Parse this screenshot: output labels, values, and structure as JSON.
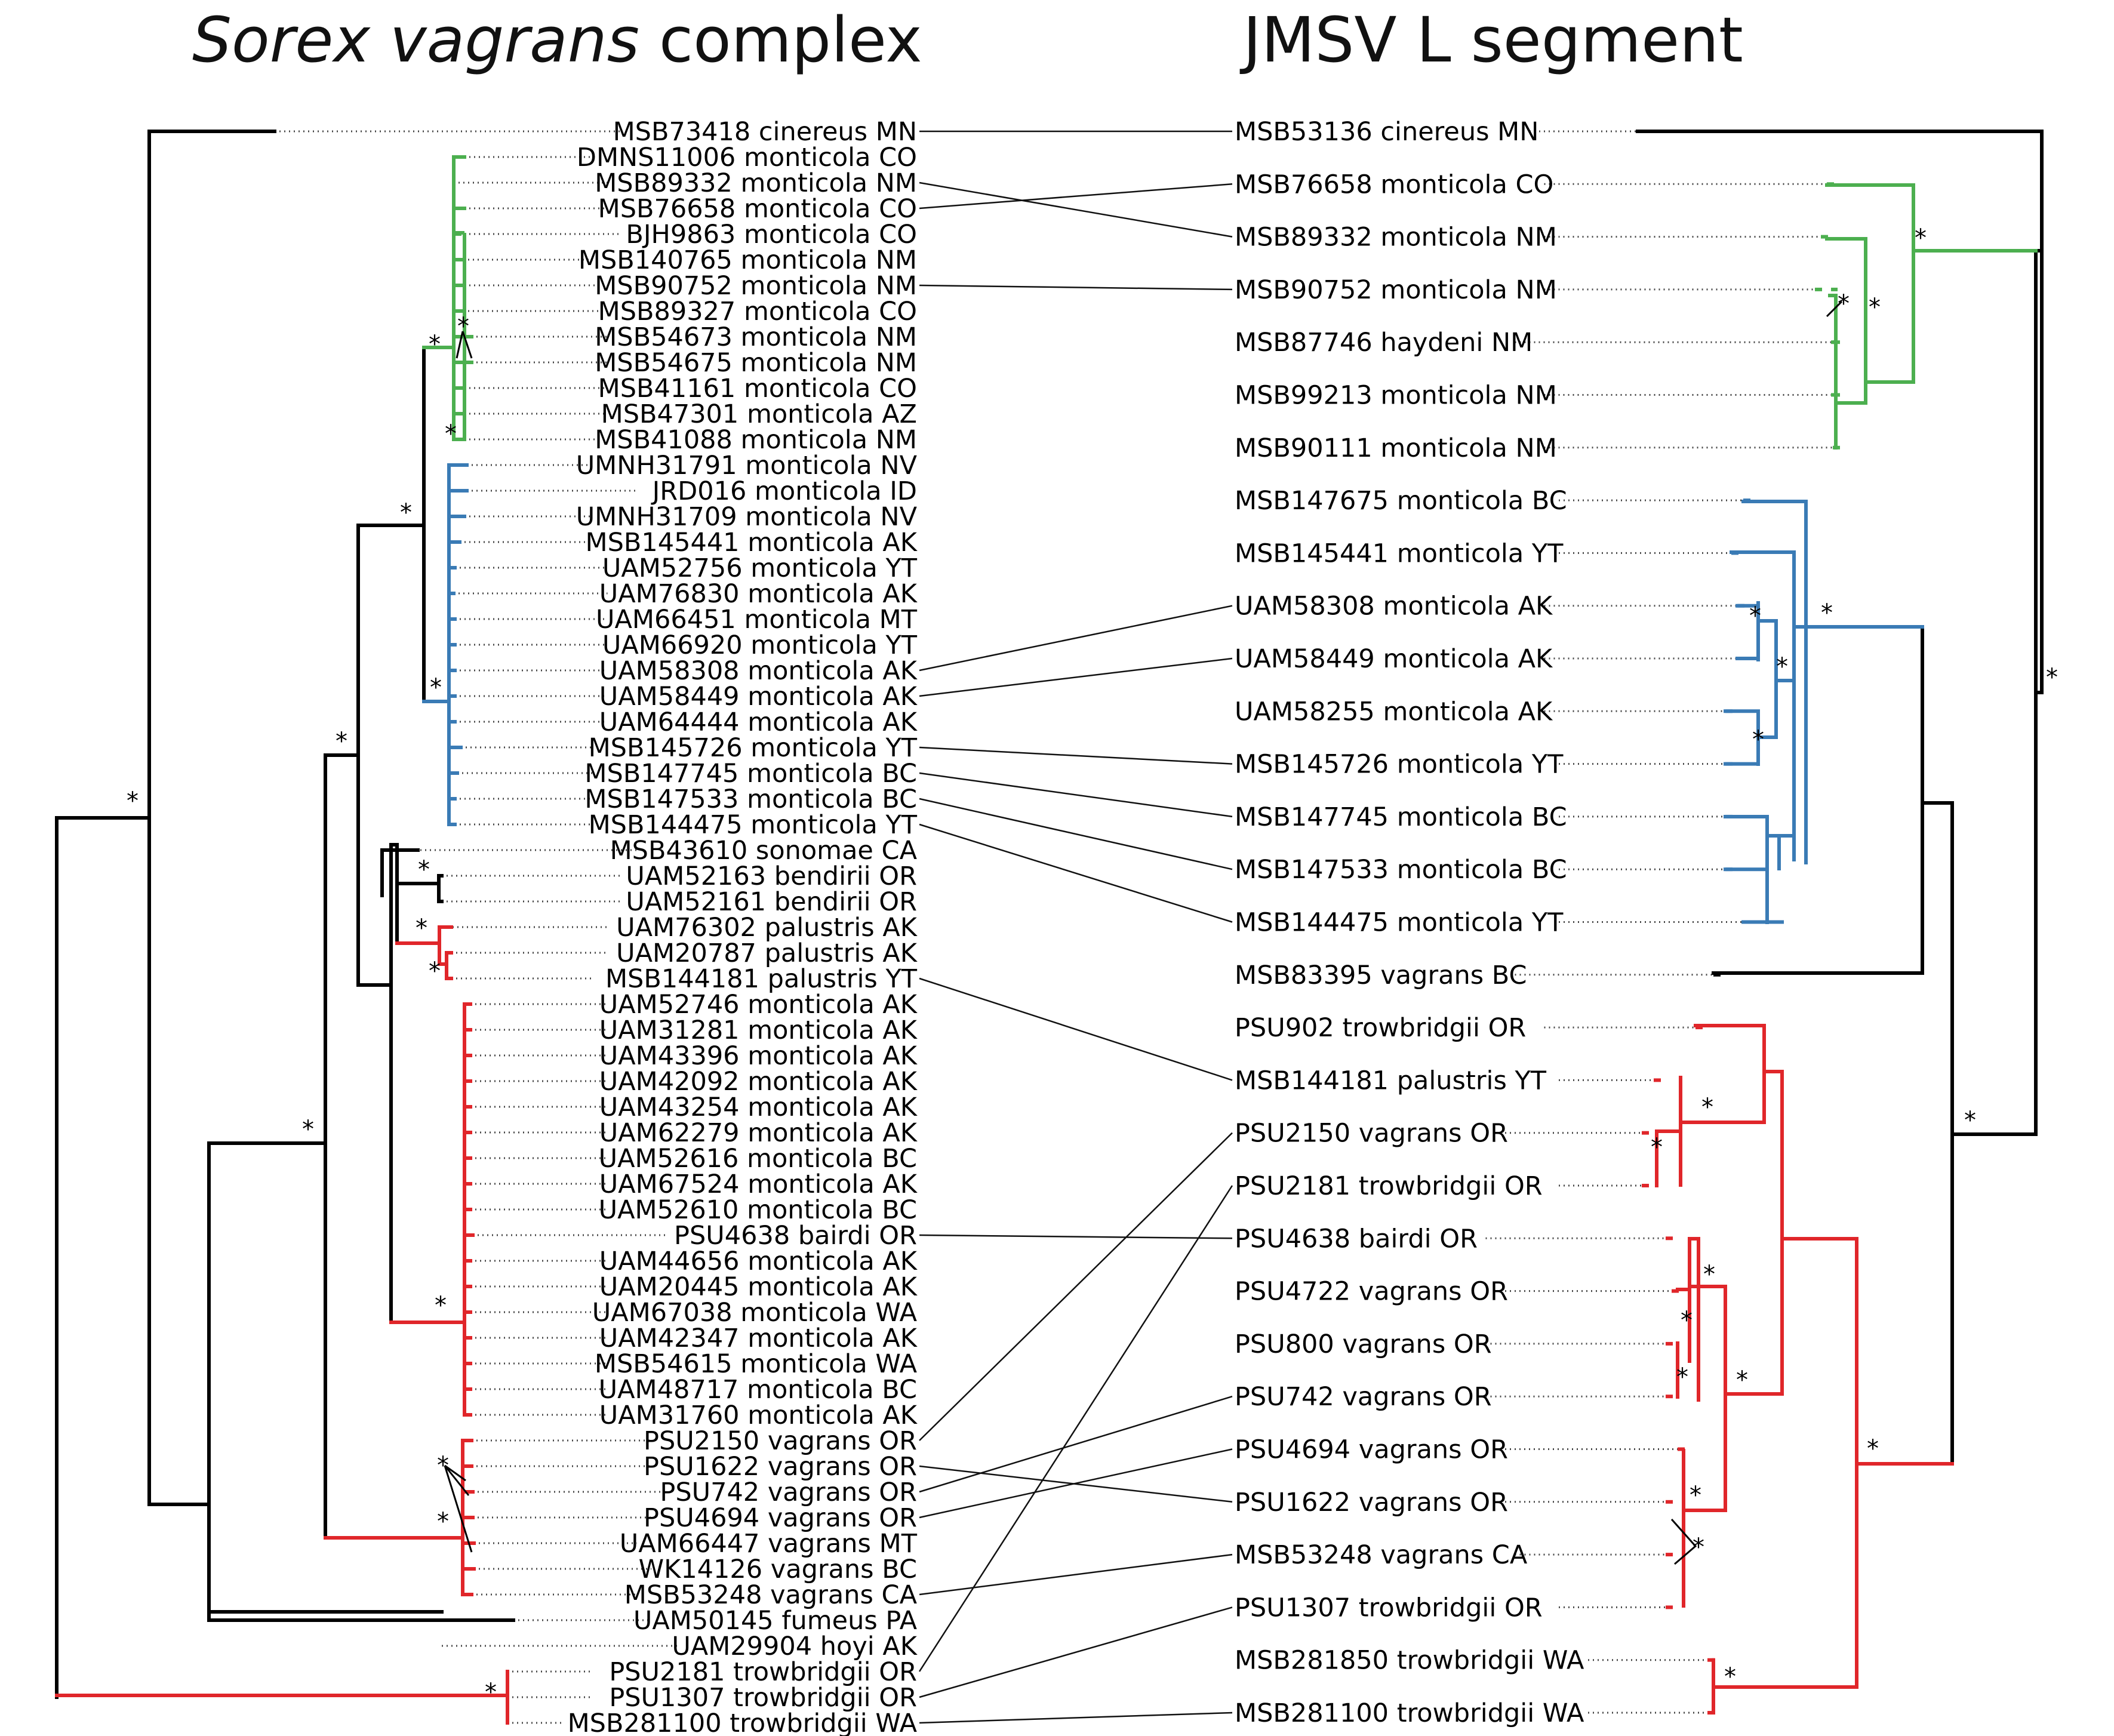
{
  "titles": {
    "left_italic": "Sorex vagrans",
    "left_rest": " complex",
    "right": "JMSV L segment"
  },
  "colors": {
    "black": "#000000",
    "green": "#4caf4f",
    "blue": "#3a7bb5",
    "red": "#e0262a",
    "dotted": "#444444"
  },
  "left_taxa": [
    {
      "label": "MSB73418 cinereus MN",
      "color": "black"
    },
    {
      "label": "DMNS11006 monticola CO",
      "color": "green"
    },
    {
      "label": "MSB89332 monticola NM",
      "color": "green"
    },
    {
      "label": "MSB76658 monticola CO",
      "color": "green"
    },
    {
      "label": "BJH9863 monticola CO",
      "color": "green"
    },
    {
      "label": "MSB140765 monticola NM",
      "color": "green"
    },
    {
      "label": "MSB90752 monticola NM",
      "color": "green"
    },
    {
      "label": "MSB89327 monticola CO",
      "color": "green"
    },
    {
      "label": "MSB54673 monticola NM",
      "color": "green"
    },
    {
      "label": "MSB54675 monticola NM",
      "color": "green"
    },
    {
      "label": "MSB41161 monticola CO",
      "color": "green"
    },
    {
      "label": "MSB47301 monticola AZ",
      "color": "green"
    },
    {
      "label": "MSB41088 monticola NM",
      "color": "green"
    },
    {
      "label": "UMNH31791 monticola NV",
      "color": "blue"
    },
    {
      "label": "JRD016 monticola ID",
      "color": "blue"
    },
    {
      "label": "UMNH31709 monticola NV",
      "color": "blue"
    },
    {
      "label": "MSB145441 monticola AK",
      "color": "blue"
    },
    {
      "label": "UAM52756 monticola YT",
      "color": "blue"
    },
    {
      "label": "UAM76830 monticola AK",
      "color": "blue"
    },
    {
      "label": "UAM66451 monticola MT",
      "color": "blue"
    },
    {
      "label": "UAM66920 monticola YT",
      "color": "blue"
    },
    {
      "label": "UAM58308 monticola AK",
      "color": "blue"
    },
    {
      "label": "UAM58449 monticola AK",
      "color": "blue"
    },
    {
      "label": "UAM64444 monticola AK",
      "color": "blue"
    },
    {
      "label": "MSB145726 monticola YT",
      "color": "blue"
    },
    {
      "label": "MSB147745 monticola BC",
      "color": "blue"
    },
    {
      "label": "MSB147533 monticola BC",
      "color": "blue"
    },
    {
      "label": "MSB144475 monticola YT",
      "color": "blue"
    },
    {
      "label": "MSB43610 sonomae CA",
      "color": "black"
    },
    {
      "label": "UAM52163 bendirii OR",
      "color": "black"
    },
    {
      "label": "UAM52161 bendirii OR",
      "color": "black"
    },
    {
      "label": "UAM76302 palustris AK",
      "color": "red"
    },
    {
      "label": "UAM20787 palustris AK",
      "color": "red"
    },
    {
      "label": "MSB144181 palustris YT",
      "color": "red"
    },
    {
      "label": "UAM52746 monticola AK",
      "color": "red"
    },
    {
      "label": "UAM31281 monticola AK",
      "color": "red"
    },
    {
      "label": "UAM43396 monticola AK",
      "color": "red"
    },
    {
      "label": "UAM42092 monticola AK",
      "color": "red"
    },
    {
      "label": "UAM43254 monticola AK",
      "color": "red"
    },
    {
      "label": "UAM62279 monticola AK",
      "color": "red"
    },
    {
      "label": "UAM52616 monticola BC",
      "color": "red"
    },
    {
      "label": "UAM67524 monticola AK",
      "color": "red"
    },
    {
      "label": "UAM52610 monticola BC",
      "color": "red"
    },
    {
      "label": "PSU4638 bairdi OR",
      "color": "red"
    },
    {
      "label": "UAM44656 monticola AK",
      "color": "red"
    },
    {
      "label": "UAM20445 monticola AK",
      "color": "red"
    },
    {
      "label": "UAM67038 monticola WA",
      "color": "red"
    },
    {
      "label": "UAM42347 monticola AK",
      "color": "red"
    },
    {
      "label": "MSB54615 monticola WA",
      "color": "red"
    },
    {
      "label": "UAM48717 monticola BC",
      "color": "red"
    },
    {
      "label": "UAM31760 monticola AK",
      "color": "red"
    },
    {
      "label": "PSU2150 vagrans OR",
      "color": "red"
    },
    {
      "label": "PSU1622 vagrans OR",
      "color": "red"
    },
    {
      "label": "PSU742 vagrans OR",
      "color": "red"
    },
    {
      "label": "PSU4694 vagrans OR",
      "color": "red"
    },
    {
      "label": "UAM66447 vagrans MT",
      "color": "red"
    },
    {
      "label": "WK14126 vagrans BC",
      "color": "red"
    },
    {
      "label": "MSB53248 vagrans CA",
      "color": "red"
    },
    {
      "label": "UAM50145 fumeus PA",
      "color": "black"
    },
    {
      "label": "UAM29904 hoyi AK",
      "color": "black"
    },
    {
      "label": "PSU2181 trowbridgii OR",
      "color": "red"
    },
    {
      "label": "PSU1307 trowbridgii OR",
      "color": "red"
    },
    {
      "label": "MSB281100 trowbridgii WA",
      "color": "red"
    }
  ],
  "right_taxa": [
    {
      "label": "MSB53136 cinereus MN",
      "color": "black"
    },
    {
      "label": "MSB76658 monticola CO",
      "color": "green"
    },
    {
      "label": "MSB89332 monticola NM",
      "color": "green"
    },
    {
      "label": "MSB90752 monticola NM",
      "color": "green"
    },
    {
      "label": "MSB87746 haydeni NM",
      "color": "green"
    },
    {
      "label": "MSB99213 monticola NM",
      "color": "green"
    },
    {
      "label": "MSB90111 monticola NM",
      "color": "green"
    },
    {
      "label": "MSB147675 monticola BC",
      "color": "blue"
    },
    {
      "label": "MSB145441 monticola YT",
      "color": "blue"
    },
    {
      "label": "UAM58308 monticola AK",
      "color": "blue"
    },
    {
      "label": "UAM58449 monticola AK",
      "color": "blue"
    },
    {
      "label": "UAM58255 monticola AK",
      "color": "blue"
    },
    {
      "label": "MSB145726 monticola YT",
      "color": "blue"
    },
    {
      "label": "MSB147745 monticola BC",
      "color": "blue"
    },
    {
      "label": "MSB147533 monticola BC",
      "color": "blue"
    },
    {
      "label": "MSB144475 monticola YT",
      "color": "blue"
    },
    {
      "label": "MSB83395 vagrans BC",
      "color": "black"
    },
    {
      "label": "PSU902 trowbridgii OR",
      "color": "red"
    },
    {
      "label": "MSB144181 palustris YT",
      "color": "red"
    },
    {
      "label": "PSU2150 vagrans OR",
      "color": "red"
    },
    {
      "label": "PSU2181 trowbridgii OR",
      "color": "red"
    },
    {
      "label": "PSU4638 bairdi OR",
      "color": "red"
    },
    {
      "label": "PSU4722 vagrans OR",
      "color": "red"
    },
    {
      "label": "PSU800 vagrans OR",
      "color": "red"
    },
    {
      "label": "PSU742 vagrans OR",
      "color": "red"
    },
    {
      "label": "PSU4694 vagrans OR",
      "color": "red"
    },
    {
      "label": "PSU1622 vagrans OR",
      "color": "red"
    },
    {
      "label": "MSB53248 vagrans CA",
      "color": "red"
    },
    {
      "label": "PSU1307 trowbridgii OR",
      "color": "red"
    },
    {
      "label": "MSB281850 trowbridgii WA",
      "color": "red"
    },
    {
      "label": "MSB281100 trowbridgii WA",
      "color": "red"
    }
  ],
  "associations": [
    {
      "left": "MSB73418 cinereus MN",
      "right": "MSB53136 cinereus MN"
    },
    {
      "left": "MSB89332 monticola NM",
      "right": "MSB89332 monticola NM"
    },
    {
      "left": "MSB76658 monticola CO",
      "right": "MSB76658 monticola CO"
    },
    {
      "left": "MSB90752 monticola NM",
      "right": "MSB90752 monticola NM"
    },
    {
      "left": "UAM58308 monticola AK",
      "right": "UAM58308 monticola AK"
    },
    {
      "left": "UAM58449 monticola AK",
      "right": "UAM58449 monticola AK"
    },
    {
      "left": "MSB145726 monticola YT",
      "right": "MSB145726 monticola YT"
    },
    {
      "left": "MSB147745 monticola BC",
      "right": "MSB147745 monticola BC"
    },
    {
      "left": "MSB147533 monticola BC",
      "right": "MSB147533 monticola BC"
    },
    {
      "left": "MSB144475 monticola YT",
      "right": "MSB144475 monticola YT"
    },
    {
      "left": "MSB144181 palustris YT",
      "right": "MSB144181 palustris YT"
    },
    {
      "left": "PSU4638 bairdi OR",
      "right": "PSU4638 bairdi OR"
    },
    {
      "left": "PSU2150 vagrans OR",
      "right": "PSU2150 vagrans OR"
    },
    {
      "left": "PSU1622 vagrans OR",
      "right": "PSU1622 vagrans OR"
    },
    {
      "left": "PSU742 vagrans OR",
      "right": "PSU742 vagrans OR"
    },
    {
      "left": "PSU4694 vagrans OR",
      "right": "PSU4694 vagrans OR"
    },
    {
      "left": "MSB53248 vagrans CA",
      "right": "MSB53248 vagrans CA"
    },
    {
      "left": "PSU2181 trowbridgii OR",
      "right": "PSU2181 trowbridgii OR"
    },
    {
      "left": "PSU1307 trowbridgii OR",
      "right": "PSU1307 trowbridgii OR"
    },
    {
      "left": "MSB281100 trowbridgii WA",
      "right": "MSB281100 trowbridgii WA"
    }
  ],
  "support_marker": "*"
}
